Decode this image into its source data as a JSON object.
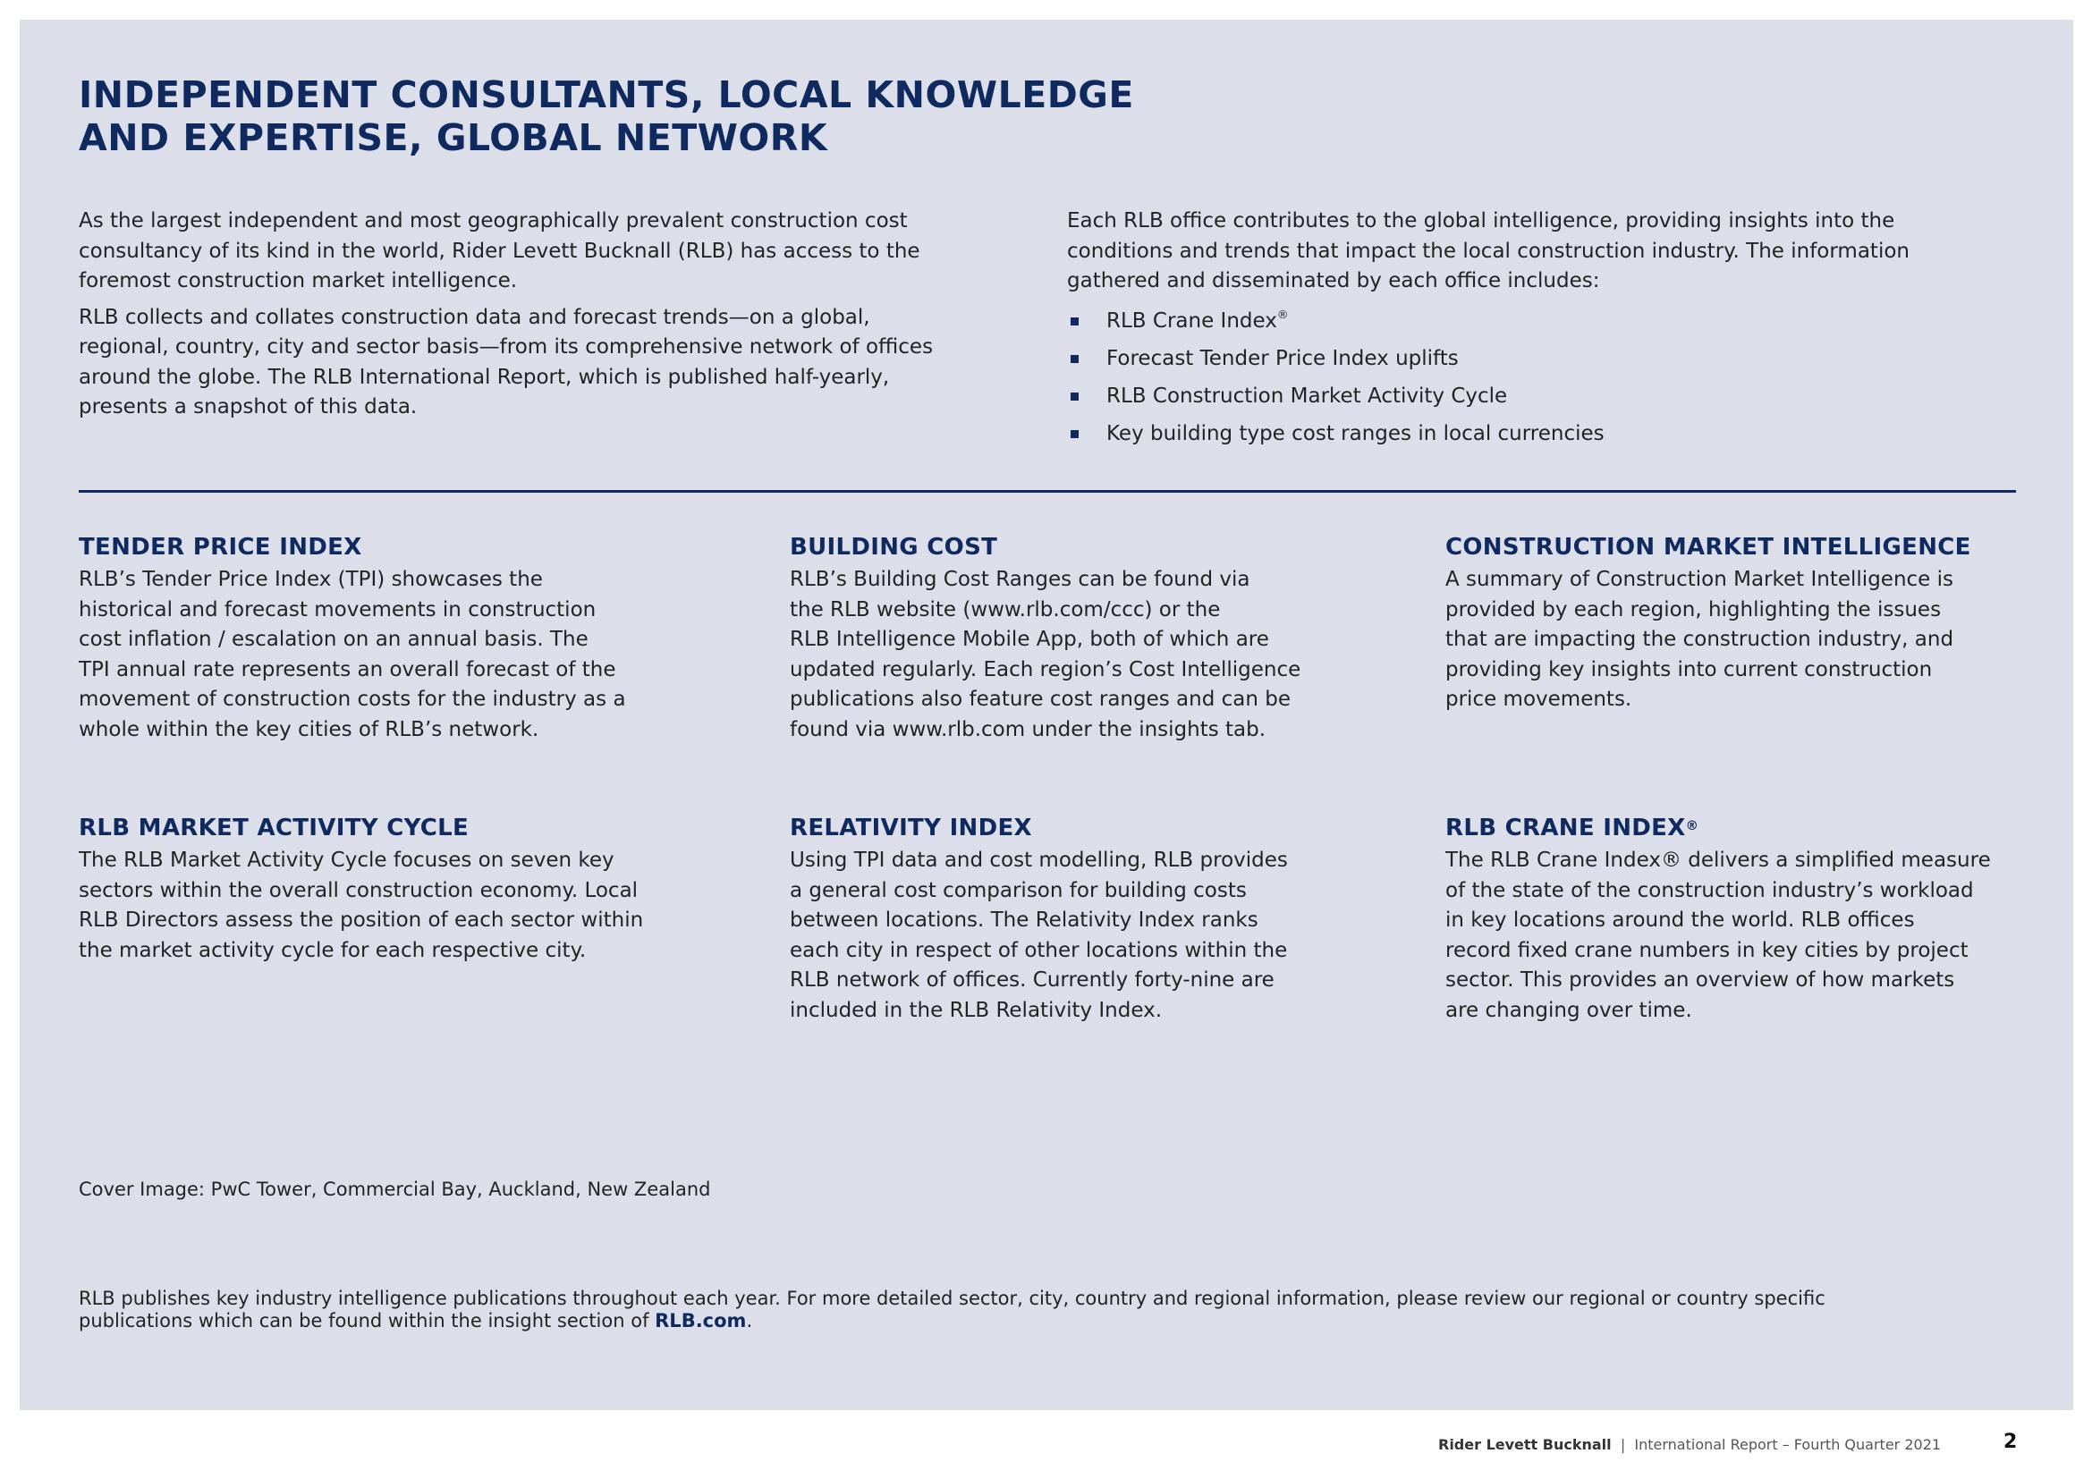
{
  "title": [
    "INDEPENDENT CONSULTANTS, LOCAL KNOWLEDGE",
    "AND EXPERTISE, GLOBAL NETWORK"
  ],
  "intro_left": [
    [
      "As the largest independent and most geographically prevalent construction cost",
      "consultancy of its kind in the world, Rider Levett Bucknall (RLB) has access to the",
      "foremost construction market intelligence."
    ],
    [
      "RLB collects and collates construction data and forecast trends—on a global,",
      "regional, country, city and sector basis—from its comprehensive network of offices",
      "around the globe. The RLB International Report, which is published half-yearly,",
      "presents a snapshot of this data."
    ]
  ],
  "intro_right": [
    "Each RLB office contributes to the global intelligence, providing insights into the",
    "conditions and trends that impact the local construction industry. The information",
    "gathered and disseminated by each office includes:"
  ],
  "bullets": [
    {
      "text": "RLB Crane Index",
      "sup": "®"
    },
    {
      "text": "Forecast Tender Price Index uplifts",
      "sup": ""
    },
    {
      "text": "RLB Construction Market Activity Cycle",
      "sup": ""
    },
    {
      "text": "Key building type cost ranges in local currencies",
      "sup": ""
    }
  ],
  "sections": [
    {
      "heading": "TENDER PRICE INDEX",
      "sup": "",
      "lines": [
        "RLB’s Tender Price Index (TPI) showcases the",
        "historical and forecast movements in construction",
        "cost inflation / escalation on an annual basis. The",
        "TPI annual rate represents an overall forecast of the",
        "movement of construction costs for the industry as a",
        "whole within the  key cities of RLB’s network."
      ]
    },
    {
      "heading": "BUILDING COST",
      "sup": "",
      "lines": [
        "RLB’s Building Cost Ranges can be found via",
        "the RLB website (www.rlb.com/ccc) or the",
        "RLB Intelligence Mobile App, both of which are",
        "updated regularly. Each region’s Cost Intelligence",
        "publications also feature cost ranges and can be",
        "found via www.rlb.com under the insights tab."
      ]
    },
    {
      "heading": "CONSTRUCTION MARKET INTELLIGENCE",
      "sup": "",
      "lines": [
        "A summary of Construction Market Intelligence is",
        "provided by each region, highlighting the issues",
        "that are impacting the construction industry, and",
        "providing key insights into current construction",
        "price movements."
      ]
    },
    {
      "heading": "RLB MARKET ACTIVITY CYCLE",
      "sup": "",
      "lines": [
        "The RLB Market Activity Cycle focuses on seven key",
        "sectors within the overall construction economy. Local",
        "RLB Directors assess the position of each sector within",
        "the market activity cycle for each respective city."
      ]
    },
    {
      "heading": "RELATIVITY INDEX",
      "sup": "",
      "lines": [
        "Using TPI data and cost modelling, RLB provides",
        "a general cost comparison for building costs",
        "between locations. The Relativity Index ranks",
        "each city in respect of other locations within the",
        "RLB network of offices. Currently forty-nine are",
        "included in the RLB Relativity Index."
      ]
    },
    {
      "heading": "RLB CRANE INDEX",
      "sup": "®",
      "lines": [
        "The RLB Crane Index® delivers a simplified measure",
        "of the state of the construction industry’s workload",
        "in key locations around the world. RLB offices",
        "record fixed crane numbers in key cities by project",
        "sector. This provides an overview of how markets",
        "are changing over time."
      ]
    }
  ],
  "cover_caption": "Cover Image: PwC Tower, Commercial Bay, Auckland, New Zealand",
  "bottom_note": {
    "line1": "RLB publishes key industry intelligence publications throughout each year. For more detailed sector, city, country and regional information, please review our regional or country specific",
    "line2": "publications which can be found within the insight section of ",
    "link": "RLB.com",
    "end": "."
  },
  "footer": {
    "company": "Rider Levett Bucknall",
    "separator": "|",
    "report": "International Report – Fourth Quarter 2021",
    "page": "2"
  },
  "colors": {
    "accent": "#0f2a5e",
    "panel": "#dcdfea"
  }
}
